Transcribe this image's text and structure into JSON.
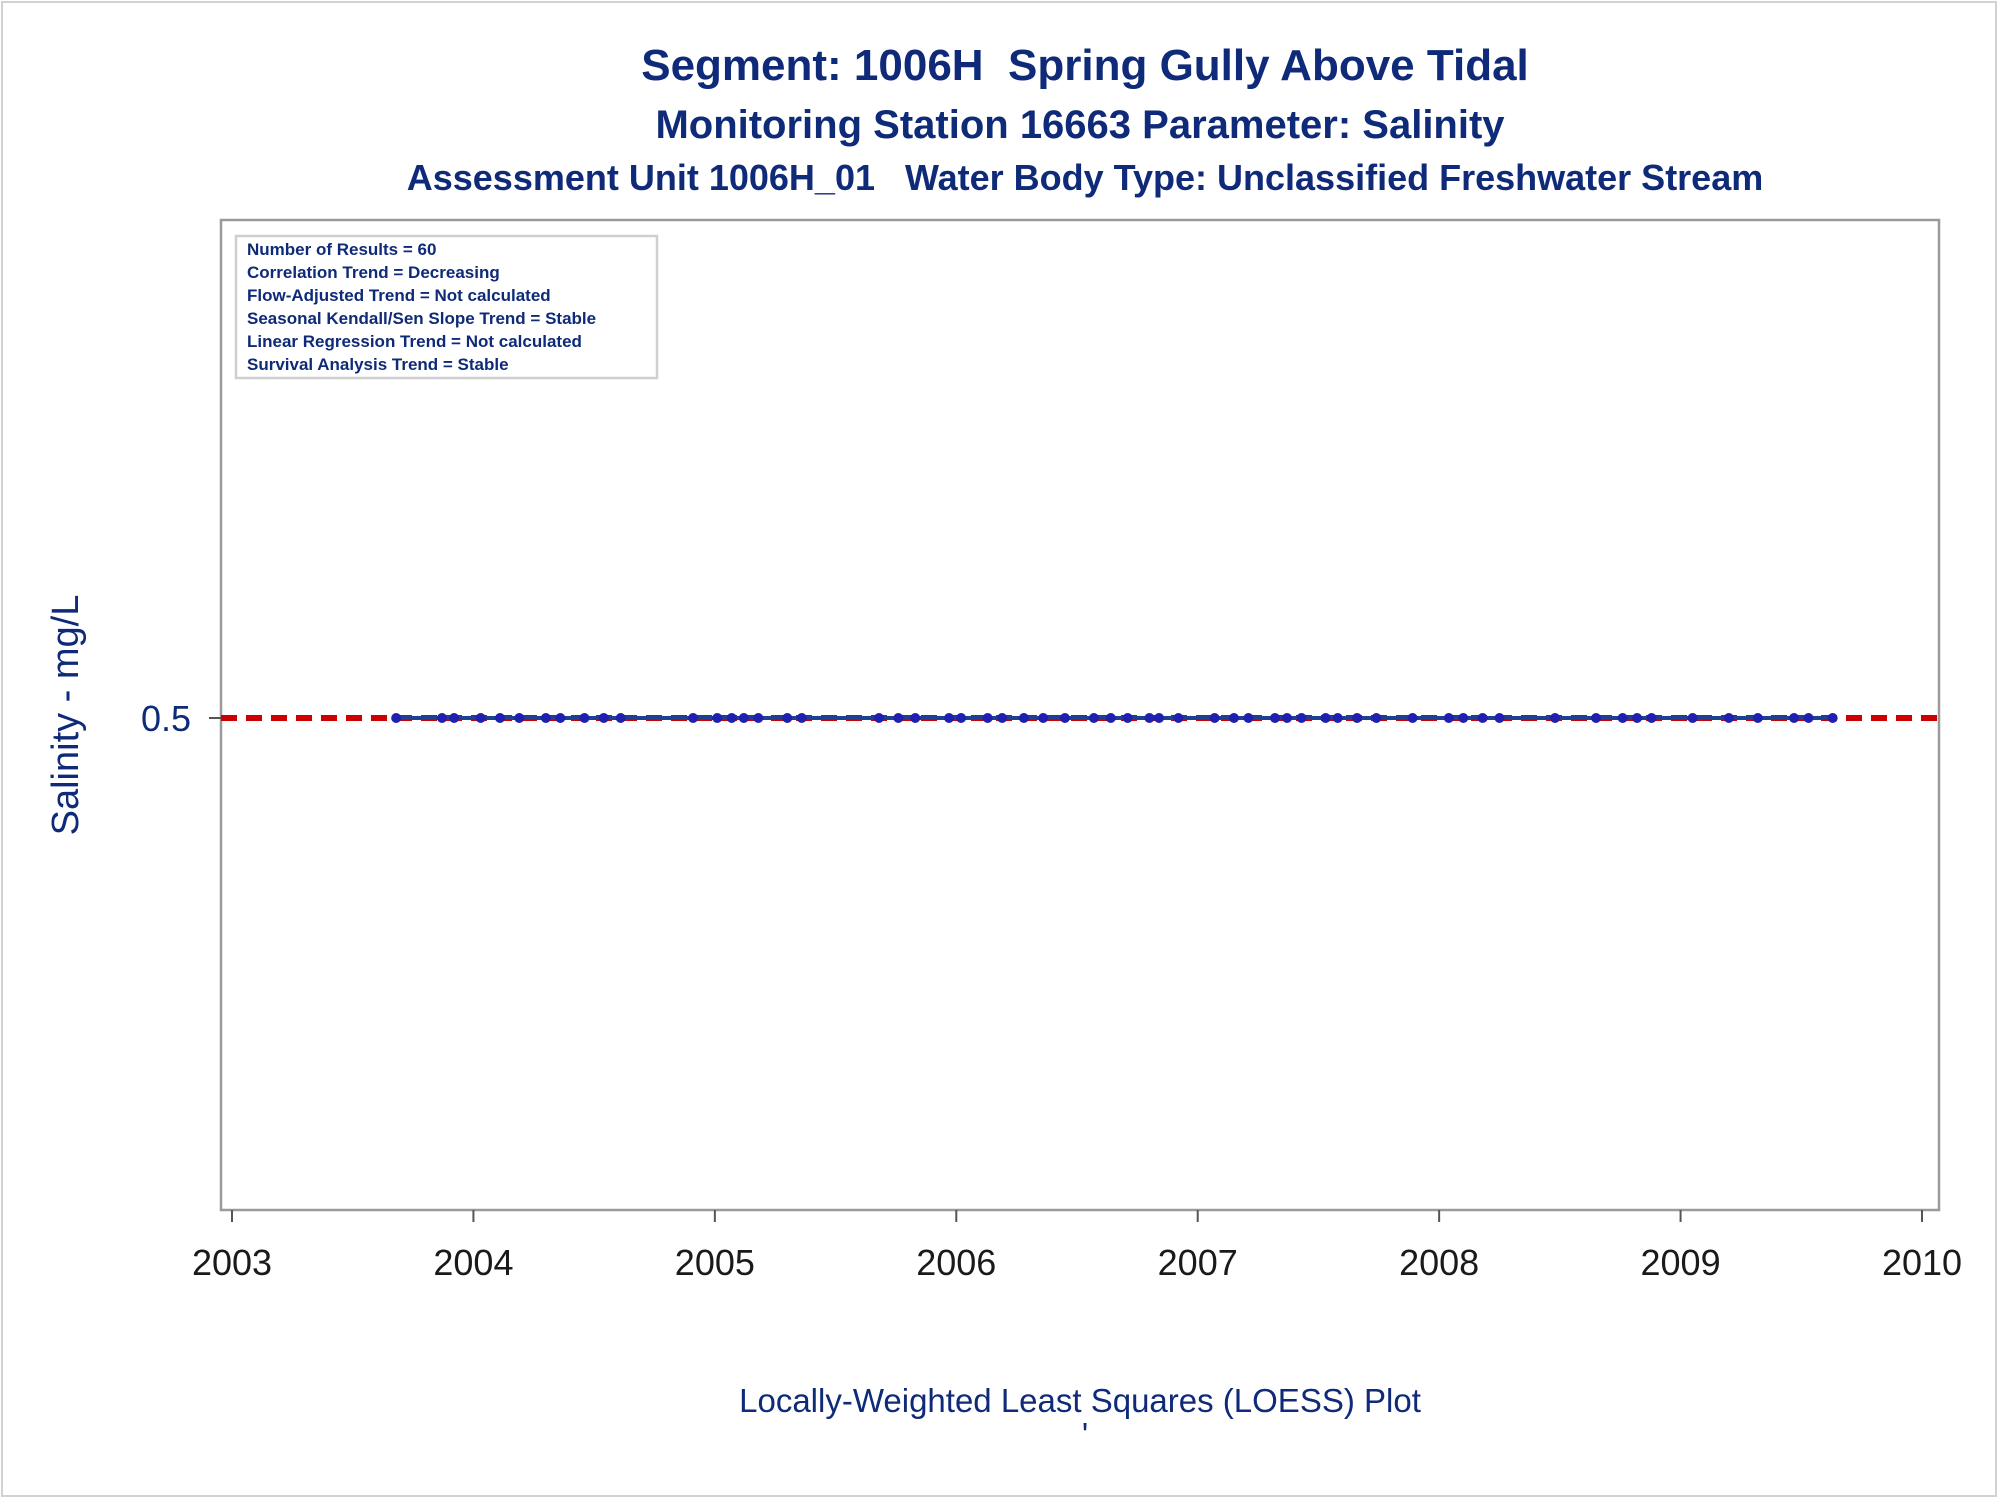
{
  "chart_data": {
    "type": "scatter",
    "title": "Segment: 1006H  Spring Gully Above Tidal",
    "subtitle": "Monitoring Station 16663 Parameter: Salinity",
    "subtitle2": "Assessment Unit 1006H_01   Water Body Type: Unclassified Freshwater Stream",
    "ylabel": "Salinity - mg/L",
    "footnote": "Locally-Weighted Least Squares (LOESS) Plot",
    "footnote_mark": "'",
    "xlim": [
      2003,
      2010
    ],
    "x_ticks": [
      "2003",
      "2004",
      "2005",
      "2006",
      "2007",
      "2008",
      "2009",
      "2010"
    ],
    "y_ticks": [
      "0.5"
    ],
    "reference_line": {
      "y": 0.5,
      "style": "dashed",
      "color": "#cc0000"
    },
    "loess_line": {
      "color": "#1f3f8f",
      "x_start": 2003.68,
      "x_end": 2009.63,
      "y": 0.5
    },
    "inset_notes": [
      "Number of Results = 60",
      "Correlation Trend = Decreasing",
      "Flow-Adjusted Trend = Not calculated",
      "Seasonal Kendall/Sen Slope Trend = Stable",
      "Linear Regression Trend = Not calculated",
      "Survival Analysis Trend = Stable"
    ],
    "series": [
      {
        "color": "#1f1fb0",
        "x": [
          2003.68,
          2003.87,
          2003.92,
          2004.03,
          2004.11,
          2004.19,
          2004.3,
          2004.36,
          2004.46,
          2004.54,
          2004.61,
          2004.91,
          2005.01,
          2005.07,
          2005.12,
          2005.18,
          2005.3,
          2005.36,
          2005.68,
          2005.76,
          2005.83,
          2005.97,
          2006.02,
          2006.13,
          2006.19,
          2006.28,
          2006.36,
          2006.45,
          2006.57,
          2006.64,
          2006.71,
          2006.8,
          2006.84,
          2006.92,
          2007.07,
          2007.15,
          2007.21,
          2007.32,
          2007.37,
          2007.43,
          2007.53,
          2007.58,
          2007.66,
          2007.74,
          2007.89,
          2008.04,
          2008.1,
          2008.18,
          2008.25,
          2008.48,
          2008.65,
          2008.76,
          2008.82,
          2008.88,
          2009.05,
          2009.2,
          2009.32,
          2009.47,
          2009.53,
          2009.63
        ],
        "y": [
          0.5,
          0.5,
          0.5,
          0.5,
          0.5,
          0.5,
          0.5,
          0.5,
          0.5,
          0.5,
          0.5,
          0.5,
          0.5,
          0.5,
          0.5,
          0.5,
          0.5,
          0.5,
          0.5,
          0.5,
          0.5,
          0.5,
          0.5,
          0.5,
          0.5,
          0.5,
          0.5,
          0.5,
          0.5,
          0.5,
          0.5,
          0.5,
          0.5,
          0.5,
          0.5,
          0.5,
          0.5,
          0.5,
          0.5,
          0.5,
          0.5,
          0.5,
          0.5,
          0.5,
          0.5,
          0.5,
          0.5,
          0.5,
          0.5,
          0.5,
          0.5,
          0.5,
          0.5,
          0.5,
          0.5,
          0.5,
          0.5,
          0.5,
          0.5,
          0.5
        ]
      }
    ],
    "grid": false,
    "legend": "top-left"
  }
}
